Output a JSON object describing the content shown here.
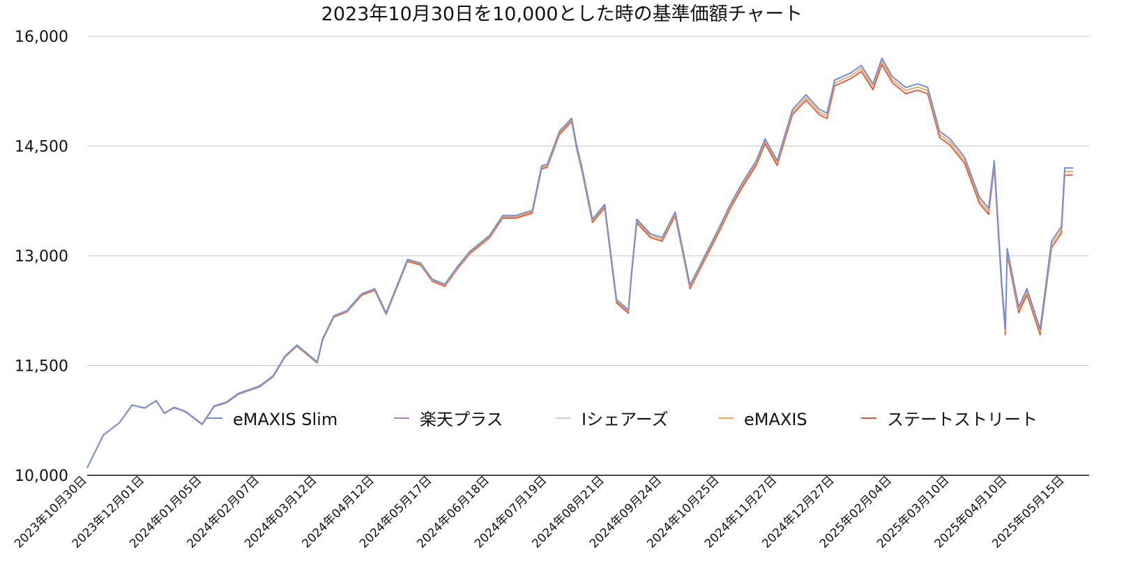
{
  "chart_data": {
    "type": "line",
    "title": "2023年10月30日を10,000とした時の基準価額チャート",
    "xlabel": "",
    "ylabel": "",
    "ylim": [
      10000,
      16000
    ],
    "y_ticks": [
      "10,000",
      "11,500",
      "13,000",
      "14,500",
      "16,000"
    ],
    "y_tick_values": [
      10000,
      11500,
      13000,
      14500,
      16000
    ],
    "x_ticks": [
      "2023年10月30日",
      "2023年12月01日",
      "2024年01月05日",
      "2024年02月07日",
      "2024年03月12日",
      "2024年04月12日",
      "2024年05月17日",
      "2024年06月18日",
      "2024年07月19日",
      "2024年08月21日",
      "2024年09月24日",
      "2024年10月25日",
      "2024年11月27日",
      "2024年12月27日",
      "2025年02月04日",
      "2025年03月10日",
      "2025年04月10日",
      "2025年05月15日"
    ],
    "grid": true,
    "legend_position": "bottom-center",
    "series": [
      {
        "name": "eMAXIS Slim",
        "color": "#6d8fd9"
      },
      {
        "name": "楽天プラス",
        "color": "#b27cc9"
      },
      {
        "name": "Iシェアーズ",
        "color": "#c9cdd6"
      },
      {
        "name": "eMAXIS",
        "color": "#f0a65a"
      },
      {
        "name": "ステートストリート",
        "color": "#d9553a"
      }
    ],
    "base_series": {
      "x": [
        "2023年10月30日",
        "2023年11月08日",
        "2023年11月17日",
        "2023年11月24日",
        "2023年12月01日",
        "2023年12月08日",
        "2023年12月13日",
        "2023年12月19日",
        "2023年12月26日",
        "2024年01月05日",
        "2024年01月12日",
        "2024年01月19日",
        "2024年01月26日",
        "2024年02月07日",
        "2024年02月15日",
        "2024年02月22日",
        "2024年02月29日",
        "2024年03月12日",
        "2024年03月15日",
        "2024年03月21日",
        "2024年03月28日",
        "2024年04月05日",
        "2024年04月12日",
        "2024年04月19日",
        "2024年04月23日",
        "2024年05月02日",
        "2024年05月10日",
        "2024年05月17日",
        "2024年05月24日",
        "2024年05月31日",
        "2024年06月07日",
        "2024年06月18日",
        "2024年06月25日",
        "2024年07月02日",
        "2024年07月11日",
        "2024年07月16日",
        "2024年07月19日",
        "2024年07月26日",
        "2024年08月02日",
        "2024年08月05日",
        "2024年08月08日",
        "2024年08月14日",
        "2024年08月21日",
        "2024年08月28日",
        "2024年09月04日",
        "2024年09月06日",
        "2024年09月09日",
        "2024年09月17日",
        "2024年09月24日",
        "2024年10月01日",
        "2024年10月09日",
        "2024年10月17日",
        "2024年10月25日",
        "2024年10月31日",
        "2024年11月07日",
        "2024年11月15日",
        "2024年11月20日",
        "2024年11月27日",
        "2024年12月05日",
        "2024年12月12日",
        "2024年12月19日",
        "2024年12月23日",
        "2024年12月27日",
        "2025年01月07日",
        "2025年01月14日",
        "2025年01月22日",
        "2025年01月28日",
        "2025年02月04日",
        "2025年02月12日",
        "2025年02月19日",
        "2025年02月25日",
        "2025年03月04日",
        "2025年03月10日",
        "2025年03月18日",
        "2025年03月26日",
        "2025年03月31日",
        "2025年04月03日",
        "2025年04月07日",
        "2025年04月09日",
        "2025年04月10日",
        "2025年04月17日",
        "2025年04月22日",
        "2025年04月30日",
        "2025年05月07日",
        "2025年05月13日",
        "2025年05月15日",
        "2025年05月20日"
      ],
      "values": [
        10100,
        10550,
        10720,
        10960,
        10920,
        11020,
        10850,
        10930,
        10870,
        10700,
        10950,
        11000,
        11120,
        11220,
        11360,
        11630,
        11780,
        11550,
        11870,
        12180,
        12250,
        12480,
        12550,
        12220,
        12450,
        12950,
        12900,
        12680,
        12610,
        12850,
        13060,
        13280,
        13550,
        13550,
        13620,
        14230,
        14250,
        14700,
        14880,
        14500,
        14200,
        13500,
        13700,
        12400,
        12260,
        12800,
        13500,
        13300,
        13250,
        13600,
        12600,
        13000,
        13400,
        13700,
        14000,
        14300,
        14600,
        14300,
        15000,
        15200,
        15000,
        14950,
        15400,
        15500,
        15600,
        15350,
        15700,
        15450,
        15300,
        15350,
        15300,
        14700,
        14600,
        14350,
        13800,
        13650,
        14300,
        12650,
        12000,
        13100,
        12300,
        12550,
        12000,
        13200,
        13400,
        14200,
        14200
      ]
    }
  }
}
